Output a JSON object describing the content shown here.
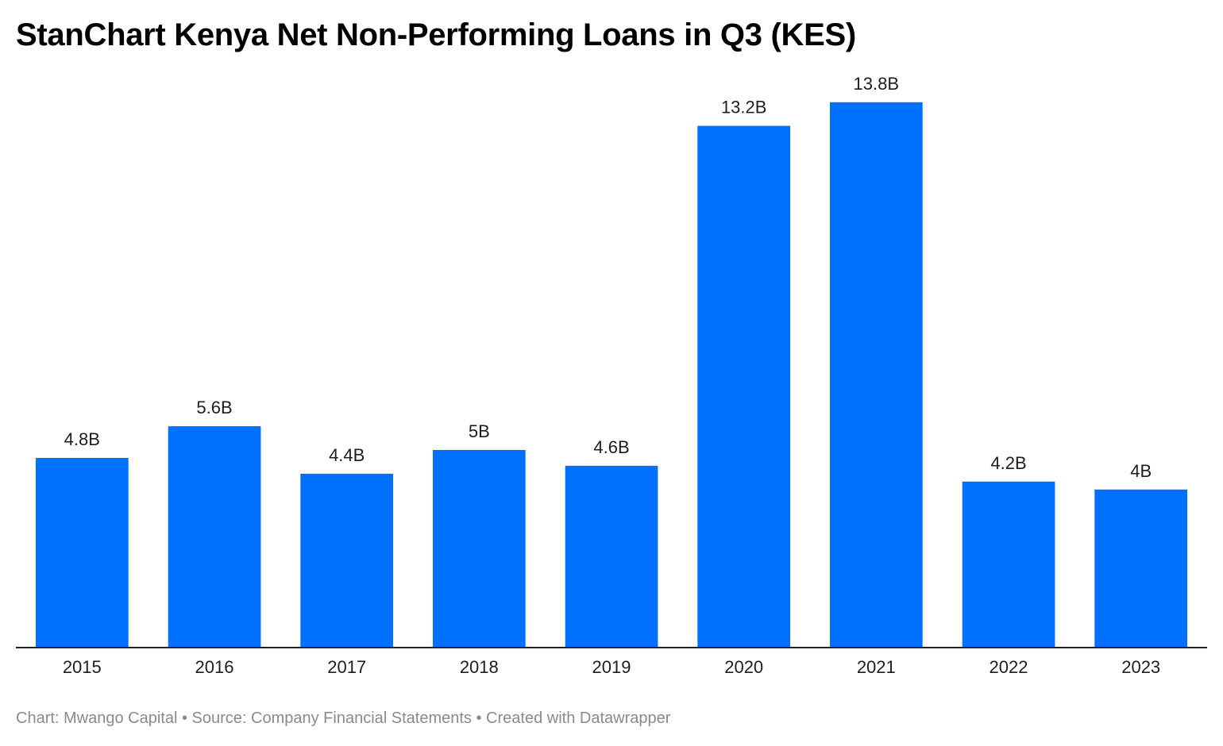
{
  "chart_data": {
    "type": "bar",
    "title": "StanChart Kenya Net Non-Performing Loans in Q3 (KES)",
    "categories": [
      "2015",
      "2016",
      "2017",
      "2018",
      "2019",
      "2020",
      "2021",
      "2022",
      "2023"
    ],
    "values": [
      4.8,
      5.6,
      4.4,
      5.0,
      4.6,
      13.2,
      13.8,
      4.2,
      4.0
    ],
    "value_labels": [
      "4.8B",
      "5.6B",
      "4.4B",
      "5B",
      "4.6B",
      "13.2B",
      "13.8B",
      "4.2B",
      "4B"
    ],
    "ylim": [
      0,
      14
    ],
    "grid": false,
    "legend": "none",
    "bar_color": "#0070ff"
  },
  "footer": {
    "text": "Chart: Mwango Capital • Source: Company Financial Statements • Created with Datawrapper"
  }
}
